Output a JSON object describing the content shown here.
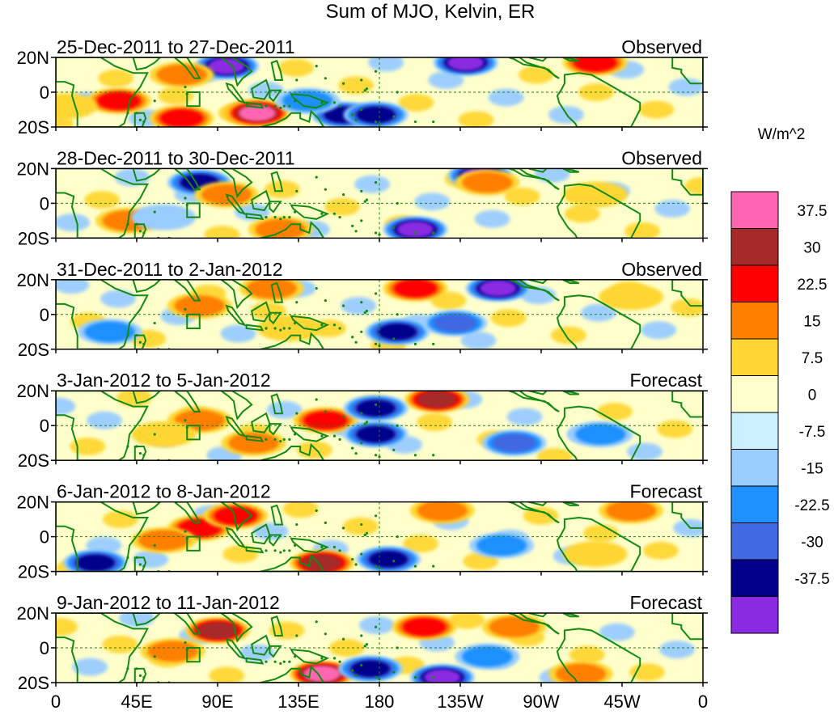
{
  "chart_data": {
    "type": "heatmap",
    "title": "Sum of MJO, Kelvin, ER",
    "colorbar": {
      "unit_label": "W/m^2",
      "tick_labels": [
        "37.5",
        "30",
        "22.5",
        "15",
        "7.5",
        "0",
        "-7.5",
        "-15",
        "-22.5",
        "-30",
        "-37.5"
      ],
      "colors": [
        "#ff66b2",
        "#a52a2a",
        "#ff0000",
        "#ff7f00",
        "#ffd633",
        "#ffffcc",
        "#ccf0ff",
        "#99ccff",
        "#1e90ff",
        "#4169e1",
        "#00008b",
        "#8a2be2"
      ]
    },
    "x_axis": {
      "tick_labels": [
        "0",
        "45E",
        "90E",
        "135E",
        "180",
        "135W",
        "90W",
        "45W",
        "0"
      ],
      "tick_lon": [
        0,
        45,
        90,
        135,
        180,
        225,
        270,
        315,
        360
      ]
    },
    "y_axis": {
      "tick_labels": [
        "20N",
        "0",
        "20S"
      ],
      "tick_lat": [
        20,
        0,
        -20
      ]
    },
    "panels": [
      {
        "period": "25-Dec-2011 to 27-Dec-2011",
        "status": "Observed",
        "features": [
          {
            "lon": 95,
            "lat": 15,
            "v": -40
          },
          {
            "lon": 160,
            "lat": -13,
            "v": -32
          },
          {
            "lon": 178,
            "lat": -13,
            "v": -36
          },
          {
            "lon": 110,
            "lat": -12,
            "v": 34
          },
          {
            "lon": 112,
            "lat": -12,
            "v": 40
          },
          {
            "lon": 35,
            "lat": -5,
            "v": 24
          },
          {
            "lon": 70,
            "lat": -15,
            "v": 26
          },
          {
            "lon": 228,
            "lat": 17,
            "v": -38
          },
          {
            "lon": 300,
            "lat": 17,
            "v": 24
          },
          {
            "lon": 70,
            "lat": 10,
            "v": 16
          },
          {
            "lon": 140,
            "lat": -5,
            "v": -16
          },
          {
            "lon": 5,
            "lat": -8,
            "v": 12
          }
        ]
      },
      {
        "period": "28-Dec-2011 to 30-Dec-2011",
        "status": "Observed",
        "features": [
          {
            "lon": 236,
            "lat": 16,
            "v": -38
          },
          {
            "lon": 200,
            "lat": -15,
            "v": -38
          },
          {
            "lon": 125,
            "lat": -15,
            "v": 22
          },
          {
            "lon": 40,
            "lat": -10,
            "v": 18
          },
          {
            "lon": 80,
            "lat": 12,
            "v": -30
          },
          {
            "lon": 95,
            "lat": 5,
            "v": 18
          },
          {
            "lon": 240,
            "lat": 12,
            "v": 16
          },
          {
            "lon": 300,
            "lat": 5,
            "v": 10
          },
          {
            "lon": 60,
            "lat": -8,
            "v": -12
          }
        ]
      },
      {
        "period": "31-Dec-2011 to 2-Jan-2012",
        "status": "Observed",
        "features": [
          {
            "lon": 200,
            "lat": 15,
            "v": 26
          },
          {
            "lon": 246,
            "lat": 15,
            "v": -38
          },
          {
            "lon": 190,
            "lat": -10,
            "v": -36
          },
          {
            "lon": 80,
            "lat": 5,
            "v": 18
          },
          {
            "lon": 130,
            "lat": -8,
            "v": 14
          },
          {
            "lon": 222,
            "lat": -5,
            "v": -26
          },
          {
            "lon": 30,
            "lat": -10,
            "v": -18
          },
          {
            "lon": 320,
            "lat": 10,
            "v": 10
          },
          {
            "lon": 120,
            "lat": 15,
            "v": 16
          }
        ]
      },
      {
        "period": "3-Jan-2012 to 5-Jan-2012",
        "status": "Forecast",
        "features": [
          {
            "lon": 212,
            "lat": 15,
            "v": 30
          },
          {
            "lon": 150,
            "lat": 3,
            "v": 24
          },
          {
            "lon": 178,
            "lat": 10,
            "v": -32
          },
          {
            "lon": 178,
            "lat": -5,
            "v": -34
          },
          {
            "lon": 80,
            "lat": 3,
            "v": 16
          },
          {
            "lon": 110,
            "lat": -10,
            "v": 16
          },
          {
            "lon": 255,
            "lat": -10,
            "v": -24
          },
          {
            "lon": 303,
            "lat": -5,
            "v": -22
          },
          {
            "lon": 60,
            "lat": -5,
            "v": 12
          }
        ]
      },
      {
        "period": "6-Jan-2012 to 8-Jan-2012",
        "status": "Forecast",
        "features": [
          {
            "lon": 80,
            "lat": 5,
            "v": 28
          },
          {
            "lon": 100,
            "lat": 12,
            "v": 24
          },
          {
            "lon": 60,
            "lat": -2,
            "v": 20
          },
          {
            "lon": 148,
            "lat": -15,
            "v": 34
          },
          {
            "lon": 185,
            "lat": -13,
            "v": -34
          },
          {
            "lon": 22,
            "lat": -15,
            "v": -30
          },
          {
            "lon": 215,
            "lat": 15,
            "v": 20
          },
          {
            "lon": 320,
            "lat": 15,
            "v": 20
          },
          {
            "lon": 248,
            "lat": -5,
            "v": -20
          },
          {
            "lon": 300,
            "lat": -10,
            "v": 12
          }
        ]
      },
      {
        "period": "9-Jan-2012 to 11-Jan-2012",
        "status": "Forecast",
        "features": [
          {
            "lon": 90,
            "lat": 10,
            "v": 32
          },
          {
            "lon": 65,
            "lat": -2,
            "v": 22
          },
          {
            "lon": 148,
            "lat": -15,
            "v": 40
          },
          {
            "lon": 175,
            "lat": -12,
            "v": -34
          },
          {
            "lon": 215,
            "lat": -17,
            "v": -40
          },
          {
            "lon": 205,
            "lat": 12,
            "v": 24
          },
          {
            "lon": 255,
            "lat": 12,
            "v": 16
          },
          {
            "lon": 292,
            "lat": -15,
            "v": 18
          },
          {
            "lon": 240,
            "lat": -5,
            "v": -18
          }
        ]
      }
    ]
  }
}
